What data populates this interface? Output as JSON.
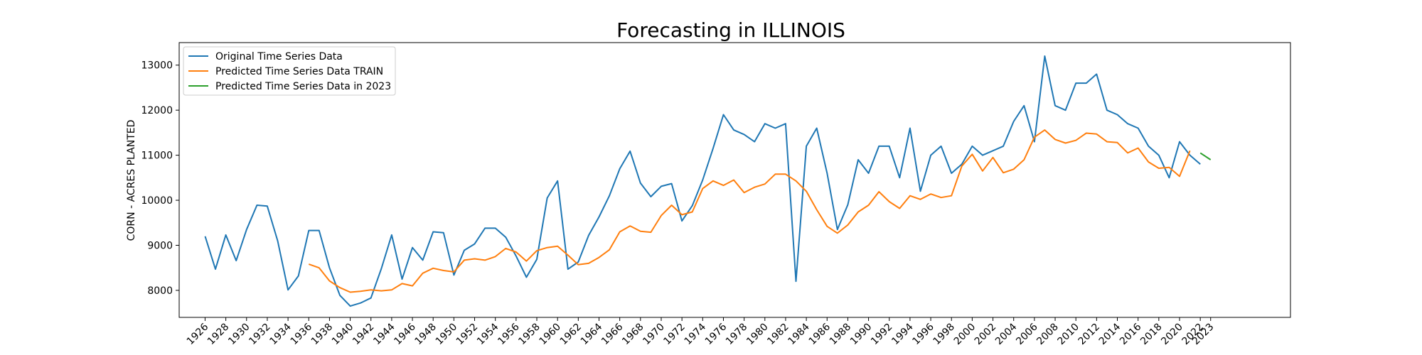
{
  "chart_data": {
    "type": "line",
    "title": "Forecasting in ILLINOIS",
    "xlabel": "",
    "ylabel": "CORN - ACRES PLANTED",
    "xlim": [
      1923.5,
      2030.7
    ],
    "ylim": [
      7400,
      13500
    ],
    "yticks": [
      8000,
      9000,
      10000,
      11000,
      12000,
      13000
    ],
    "xticks": [
      1926,
      1928,
      1930,
      1932,
      1934,
      1936,
      1938,
      1940,
      1942,
      1944,
      1946,
      1948,
      1950,
      1952,
      1954,
      1956,
      1958,
      1960,
      1962,
      1964,
      1966,
      1968,
      1970,
      1972,
      1974,
      1976,
      1978,
      1980,
      1982,
      1984,
      1986,
      1988,
      1990,
      1992,
      1994,
      1996,
      1998,
      2000,
      2002,
      2004,
      2006,
      2008,
      2010,
      2012,
      2014,
      2016,
      2018,
      2020,
      2022,
      2023
    ],
    "grid": false,
    "legend": "top-left",
    "series": [
      {
        "name": "Original Time Series Data",
        "color": "#1f77b4",
        "x": [
          1926,
          1927,
          1928,
          1929,
          1930,
          1931,
          1932,
          1933,
          1934,
          1935,
          1936,
          1937,
          1938,
          1939,
          1940,
          1941,
          1942,
          1943,
          1944,
          1945,
          1946,
          1947,
          1948,
          1949,
          1950,
          1951,
          1952,
          1953,
          1954,
          1955,
          1956,
          1957,
          1958,
          1959,
          1960,
          1961,
          1962,
          1963,
          1964,
          1965,
          1966,
          1967,
          1968,
          1969,
          1970,
          1971,
          1972,
          1973,
          1974,
          1975,
          1976,
          1977,
          1978,
          1979,
          1980,
          1981,
          1982,
          1983,
          1984,
          1985,
          1986,
          1987,
          1988,
          1989,
          1990,
          1991,
          1992,
          1993,
          1994,
          1995,
          1996,
          1997,
          1998,
          1999,
          2000,
          2001,
          2002,
          2003,
          2004,
          2005,
          2006,
          2007,
          2008,
          2009,
          2010,
          2011,
          2012,
          2013,
          2014,
          2015,
          2016,
          2017,
          2018,
          2019,
          2020,
          2021,
          2022
        ],
        "values": [
          9200,
          8470,
          9230,
          8660,
          9350,
          9890,
          9870,
          9100,
          8010,
          8320,
          9330,
          9330,
          8500,
          7890,
          7650,
          7720,
          7830,
          8480,
          9230,
          8250,
          8950,
          8670,
          9300,
          9280,
          8340,
          8890,
          9030,
          9380,
          9380,
          9180,
          8760,
          8290,
          8690,
          10050,
          10430,
          8470,
          8630,
          9220,
          9630,
          10100,
          10700,
          11090,
          10380,
          10080,
          10310,
          10370,
          9540,
          9880,
          10450,
          11150,
          11900,
          11560,
          11460,
          11300,
          11700,
          11600,
          11700,
          8200,
          11200,
          11600,
          10600,
          9350,
          9900,
          10900,
          10600,
          11200,
          11200,
          10500,
          11600,
          10200,
          11000,
          11200,
          10600,
          10800,
          11200,
          11000,
          11100,
          11200,
          11750,
          12100,
          11300,
          13200,
          12100,
          12000,
          12600,
          12600,
          12800,
          12000,
          11900,
          11700,
          11600,
          11200,
          11000,
          10500,
          11300,
          11000,
          10800
        ]
      },
      {
        "name": "Predicted Time Series Data TRAIN",
        "color": "#ff7f0e",
        "x": [
          1936,
          1937,
          1938,
          1939,
          1940,
          1941,
          1942,
          1943,
          1944,
          1945,
          1946,
          1947,
          1948,
          1949,
          1950,
          1951,
          1952,
          1953,
          1954,
          1955,
          1956,
          1957,
          1958,
          1959,
          1960,
          1961,
          1962,
          1963,
          1964,
          1965,
          1966,
          1967,
          1968,
          1969,
          1970,
          1971,
          1972,
          1973,
          1974,
          1975,
          1976,
          1977,
          1978,
          1979,
          1980,
          1981,
          1982,
          1983,
          1984,
          1985,
          1986,
          1987,
          1988,
          1989,
          1990,
          1991,
          1992,
          1993,
          1994,
          1995,
          1996,
          1997,
          1998,
          1999,
          2000,
          2001,
          2002,
          2003,
          2004,
          2005,
          2006,
          2007,
          2008,
          2009,
          2010,
          2011,
          2012,
          2013,
          2014,
          2015,
          2016,
          2017,
          2018,
          2019,
          2020,
          2021
        ],
        "values": [
          8580,
          8500,
          8210,
          8060,
          7960,
          7980,
          8010,
          7990,
          8010,
          8150,
          8100,
          8380,
          8490,
          8440,
          8410,
          8670,
          8700,
          8670,
          8750,
          8930,
          8850,
          8650,
          8880,
          8950,
          8980,
          8780,
          8570,
          8600,
          8730,
          8900,
          9300,
          9430,
          9310,
          9290,
          9660,
          9890,
          9680,
          9740,
          10260,
          10430,
          10330,
          10450,
          10170,
          10290,
          10360,
          10580,
          10580,
          10430,
          10200,
          9790,
          9420,
          9270,
          9450,
          9740,
          9890,
          10190,
          9970,
          9820,
          10100,
          10020,
          10140,
          10060,
          10100,
          10760,
          11020,
          10650,
          10950,
          10610,
          10690,
          10900,
          11400,
          11560,
          11350,
          11270,
          11330,
          11490,
          11470,
          11300,
          11280,
          11050,
          11160,
          10850,
          10710,
          10730,
          10530,
          11100
        ]
      },
      {
        "name": "Predicted Time Series Data in 2023",
        "color": "#2ca02c",
        "x": [
          2022,
          2023
        ],
        "values": [
          11050,
          10900
        ]
      }
    ]
  }
}
